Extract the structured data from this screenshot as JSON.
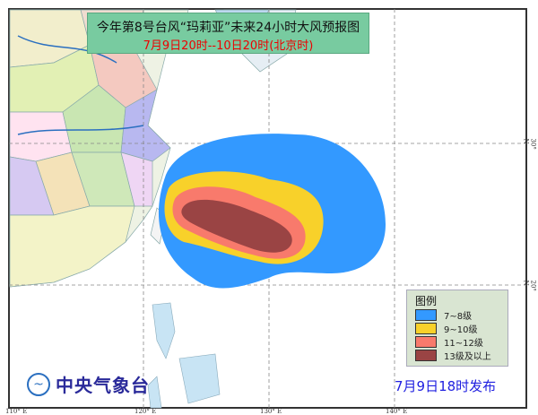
{
  "title": {
    "line1": "今年第8号台风“玛莉亚”未来24小时大风预报图",
    "line2": "7月9日20时--10日20时(北京时)"
  },
  "legend": {
    "title": "图例",
    "items": [
      {
        "label": "7~8级",
        "color": "#3399ff"
      },
      {
        "label": "9~10级",
        "color": "#f8d12a"
      },
      {
        "label": "11~12级",
        "color": "#f87a6c"
      },
      {
        "label": "13级及以上",
        "color": "#9a4444"
      }
    ]
  },
  "issue_time": "7月9日18时发布",
  "agency": "中央气象台",
  "axes": {
    "lon_labels": [
      "110° E",
      "120° E",
      "130° E",
      "140° E"
    ],
    "lat_labels": [
      "30° N",
      "20° N"
    ]
  },
  "colors": {
    "sea": "#ffffff",
    "land": "#f4f4f4",
    "title_bg": "#78cba0"
  }
}
